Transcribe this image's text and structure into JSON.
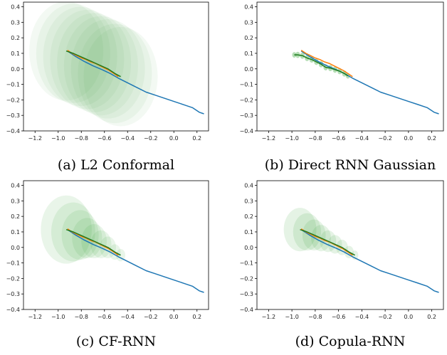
{
  "chart_data": [
    {
      "type": "line",
      "caption": "(a) L2 Conformal",
      "xlim": [
        -1.3,
        0.3
      ],
      "ylim": [
        -0.4,
        0.43
      ],
      "x_ticks": [
        -1.2,
        -1.0,
        -0.8,
        -0.6,
        -0.4,
        -0.2,
        0.0,
        0.2
      ],
      "x_tick_labels": [
        "−1.2",
        "−1.0",
        "−0.8",
        "−0.6",
        "−0.4",
        "−0.2",
        "0.0",
        "0.2"
      ],
      "y_ticks": [
        0.4,
        0.3,
        0.2,
        0.1,
        0.0,
        -0.1,
        -0.2,
        -0.3,
        -0.4
      ],
      "y_tick_labels": [
        "0.4",
        "0.3",
        "0.2",
        "0.1",
        "0.0",
        "−0.1",
        "−0.2",
        "−0.3",
        "−0.4"
      ],
      "series": [
        {
          "role": "full-path",
          "color": "#1f77b4",
          "x": [
            -0.92,
            -0.85,
            -0.78,
            -0.7,
            -0.62,
            -0.55,
            -0.48,
            -0.4,
            -0.32,
            -0.24,
            -0.16,
            -0.08,
            0.0,
            0.08,
            0.16,
            0.22,
            0.26
          ],
          "y": [
            0.115,
            0.08,
            0.05,
            0.02,
            -0.005,
            -0.03,
            -0.06,
            -0.09,
            -0.12,
            -0.15,
            -0.17,
            -0.19,
            -0.21,
            -0.23,
            -0.25,
            -0.28,
            -0.29
          ]
        },
        {
          "role": "ground-truth",
          "color": "#ff7f0e",
          "x": [
            -0.92,
            -0.88,
            -0.84,
            -0.8,
            -0.76,
            -0.72,
            -0.68,
            -0.64,
            -0.6,
            -0.56,
            -0.52,
            -0.48
          ],
          "y": [
            0.12,
            0.1,
            0.085,
            0.07,
            0.06,
            0.045,
            0.035,
            0.02,
            0.005,
            -0.01,
            -0.03,
            -0.05
          ]
        },
        {
          "role": "prediction",
          "color": "#1e7b1e",
          "x": [
            -0.93,
            -0.87,
            -0.81,
            -0.75,
            -0.69,
            -0.63,
            -0.57,
            -0.51,
            -0.46
          ],
          "y": [
            0.115,
            0.1,
            0.08,
            0.06,
            0.04,
            0.02,
            0.0,
            -0.03,
            -0.05
          ]
        }
      ],
      "regions": {
        "color": "#2ca02c",
        "opacity": 0.06,
        "centers": [
          [
            -0.93,
            0.115
          ],
          [
            -0.87,
            0.1
          ],
          [
            -0.81,
            0.08
          ],
          [
            -0.75,
            0.06
          ],
          [
            -0.69,
            0.04
          ],
          [
            -0.63,
            0.02
          ],
          [
            -0.57,
            0.0
          ],
          [
            -0.51,
            -0.03
          ],
          [
            -0.46,
            -0.05
          ]
        ],
        "radii": [
          0.32,
          0.32,
          0.32,
          0.32,
          0.32,
          0.32,
          0.32,
          0.32,
          0.32
        ]
      }
    },
    {
      "type": "line",
      "caption": "(b) Direct RNN Gaussian",
      "xlim": [
        -1.3,
        0.3
      ],
      "ylim": [
        -0.4,
        0.43
      ],
      "x_ticks": [
        -1.2,
        -1.0,
        -0.8,
        -0.6,
        -0.4,
        -0.2,
        0.0,
        0.2
      ],
      "x_tick_labels": [
        "−1.2",
        "−1.0",
        "−0.8",
        "−0.6",
        "−0.4",
        "−0.2",
        "0.0",
        "0.2"
      ],
      "y_ticks": [
        0.4,
        0.3,
        0.2,
        0.1,
        0.0,
        -0.1,
        -0.2,
        -0.3,
        -0.4
      ],
      "y_tick_labels": [
        "0.4",
        "0.3",
        "0.2",
        "0.1",
        "0.0",
        "−0.1",
        "−0.2",
        "−0.3",
        "−0.4"
      ],
      "series": [
        {
          "role": "full-path",
          "color": "#1f77b4",
          "x": [
            -0.92,
            -0.85,
            -0.78,
            -0.7,
            -0.62,
            -0.55,
            -0.48,
            -0.4,
            -0.32,
            -0.24,
            -0.16,
            -0.08,
            0.0,
            0.08,
            0.16,
            0.22,
            0.26
          ],
          "y": [
            0.115,
            0.08,
            0.05,
            0.02,
            -0.005,
            -0.03,
            -0.06,
            -0.09,
            -0.12,
            -0.15,
            -0.17,
            -0.19,
            -0.21,
            -0.23,
            -0.25,
            -0.28,
            -0.29
          ]
        },
        {
          "role": "ground-truth",
          "color": "#ff7f0e",
          "x": [
            -0.92,
            -0.88,
            -0.84,
            -0.8,
            -0.76,
            -0.72,
            -0.68,
            -0.64,
            -0.6,
            -0.56,
            -0.52,
            -0.48
          ],
          "y": [
            0.12,
            0.1,
            0.085,
            0.07,
            0.06,
            0.045,
            0.035,
            0.02,
            0.005,
            -0.01,
            -0.03,
            -0.05
          ]
        },
        {
          "role": "prediction",
          "color": "#1e7b1e",
          "x": [
            -0.98,
            -0.95,
            -0.91,
            -0.87,
            -0.83,
            -0.79,
            -0.75,
            -0.71,
            -0.67,
            -0.63,
            -0.59,
            -0.55,
            -0.52
          ],
          "y": [
            0.09,
            0.09,
            0.085,
            0.07,
            0.06,
            0.045,
            0.03,
            0.01,
            0.005,
            -0.005,
            -0.015,
            -0.03,
            -0.045
          ]
        }
      ],
      "regions": {
        "color": "#2ca02c",
        "opacity": 0.35,
        "centers": [
          [
            -0.98,
            0.09
          ],
          [
            -0.95,
            0.09
          ],
          [
            -0.91,
            0.085
          ],
          [
            -0.87,
            0.07
          ],
          [
            -0.83,
            0.06
          ],
          [
            -0.79,
            0.045
          ],
          [
            -0.75,
            0.03
          ],
          [
            -0.71,
            0.01
          ],
          [
            -0.67,
            0.005
          ],
          [
            -0.63,
            -0.005
          ],
          [
            -0.59,
            -0.015
          ],
          [
            -0.55,
            -0.03
          ],
          [
            -0.52,
            -0.045
          ]
        ],
        "radii": [
          0.018,
          0.02,
          0.02,
          0.02,
          0.02,
          0.02,
          0.02,
          0.02,
          0.02,
          0.02,
          0.02,
          0.02,
          0.018
        ]
      }
    },
    {
      "type": "line",
      "caption": "(c) CF-RNN",
      "xlim": [
        -1.3,
        0.3
      ],
      "ylim": [
        -0.4,
        0.43
      ],
      "x_ticks": [
        -1.2,
        -1.0,
        -0.8,
        -0.6,
        -0.4,
        -0.2,
        0.0,
        0.2
      ],
      "x_tick_labels": [
        "−1.2",
        "−1.0",
        "−0.8",
        "−0.6",
        "−0.4",
        "−0.2",
        "0.0",
        "0.2"
      ],
      "y_ticks": [
        0.4,
        0.3,
        0.2,
        0.1,
        0.0,
        -0.1,
        -0.2,
        -0.3,
        -0.4
      ],
      "y_tick_labels": [
        "0.4",
        "0.3",
        "0.2",
        "0.1",
        "0.0",
        "−0.1",
        "−0.2",
        "−0.3",
        "−0.4"
      ],
      "series": [
        {
          "role": "full-path",
          "color": "#1f77b4",
          "x": [
            -0.92,
            -0.85,
            -0.78,
            -0.7,
            -0.62,
            -0.55,
            -0.48,
            -0.4,
            -0.32,
            -0.24,
            -0.16,
            -0.08,
            0.0,
            0.08,
            0.16,
            0.22,
            0.26
          ],
          "y": [
            0.115,
            0.08,
            0.05,
            0.02,
            -0.005,
            -0.03,
            -0.06,
            -0.09,
            -0.12,
            -0.15,
            -0.17,
            -0.19,
            -0.21,
            -0.23,
            -0.25,
            -0.28,
            -0.29
          ]
        },
        {
          "role": "ground-truth",
          "color": "#ff7f0e",
          "x": [
            -0.92,
            -0.88,
            -0.84,
            -0.8,
            -0.76,
            -0.72,
            -0.68,
            -0.64,
            -0.6,
            -0.56,
            -0.52,
            -0.48
          ],
          "y": [
            0.12,
            0.1,
            0.085,
            0.07,
            0.06,
            0.045,
            0.035,
            0.02,
            0.005,
            -0.01,
            -0.03,
            -0.05
          ]
        },
        {
          "role": "prediction",
          "color": "#1e7b1e",
          "x": [
            -0.93,
            -0.87,
            -0.81,
            -0.75,
            -0.69,
            -0.63,
            -0.57,
            -0.51,
            -0.46
          ],
          "y": [
            0.115,
            0.1,
            0.08,
            0.06,
            0.04,
            0.02,
            0.0,
            -0.03,
            -0.05
          ]
        }
      ],
      "regions": {
        "color": "#2ca02c",
        "opacity": 0.1,
        "centers": [
          [
            -0.93,
            0.115
          ],
          [
            -0.87,
            0.1
          ],
          [
            -0.81,
            0.08
          ],
          [
            -0.75,
            0.06
          ],
          [
            -0.69,
            0.04
          ],
          [
            -0.63,
            0.02
          ],
          [
            -0.57,
            0.0
          ],
          [
            -0.51,
            -0.03
          ],
          [
            -0.46,
            -0.05
          ]
        ],
        "radii": [
          0.22,
          0.19,
          0.16,
          0.13,
          0.11,
          0.09,
          0.07,
          0.05,
          0.04
        ]
      }
    },
    {
      "type": "line",
      "caption": "(d) Copula-RNN",
      "xlim": [
        -1.3,
        0.3
      ],
      "ylim": [
        -0.4,
        0.43
      ],
      "x_ticks": [
        -1.2,
        -1.0,
        -0.8,
        -0.6,
        -0.4,
        -0.2,
        0.0,
        0.2
      ],
      "x_tick_labels": [
        "−1.2",
        "−1.0",
        "−0.8",
        "−0.6",
        "−0.4",
        "−0.2",
        "0.0",
        "0.2"
      ],
      "y_ticks": [
        0.4,
        0.3,
        0.2,
        0.1,
        0.0,
        -0.1,
        -0.2,
        -0.3,
        -0.4
      ],
      "y_tick_labels": [
        "0.4",
        "0.3",
        "0.2",
        "0.1",
        "0.0",
        "−0.1",
        "−0.2",
        "−0.3",
        "−0.4"
      ],
      "series": [
        {
          "role": "full-path",
          "color": "#1f77b4",
          "x": [
            -0.92,
            -0.85,
            -0.78,
            -0.7,
            -0.62,
            -0.55,
            -0.48,
            -0.4,
            -0.32,
            -0.24,
            -0.16,
            -0.08,
            0.0,
            0.08,
            0.16,
            0.22,
            0.26
          ],
          "y": [
            0.115,
            0.08,
            0.05,
            0.02,
            -0.005,
            -0.03,
            -0.06,
            -0.09,
            -0.12,
            -0.15,
            -0.17,
            -0.19,
            -0.21,
            -0.23,
            -0.25,
            -0.28,
            -0.29
          ]
        },
        {
          "role": "ground-truth",
          "color": "#ff7f0e",
          "x": [
            -0.92,
            -0.88,
            -0.84,
            -0.8,
            -0.76,
            -0.72,
            -0.68,
            -0.64,
            -0.6,
            -0.56,
            -0.52,
            -0.48
          ],
          "y": [
            0.12,
            0.1,
            0.085,
            0.07,
            0.06,
            0.045,
            0.035,
            0.02,
            0.005,
            -0.01,
            -0.03,
            -0.05
          ]
        },
        {
          "role": "prediction",
          "color": "#1e7b1e",
          "x": [
            -0.93,
            -0.87,
            -0.81,
            -0.75,
            -0.69,
            -0.63,
            -0.57,
            -0.51,
            -0.46
          ],
          "y": [
            0.115,
            0.1,
            0.08,
            0.06,
            0.04,
            0.02,
            0.0,
            -0.03,
            -0.05
          ]
        }
      ],
      "regions": {
        "color": "#2ca02c",
        "opacity": 0.12,
        "centers": [
          [
            -0.93,
            0.115
          ],
          [
            -0.87,
            0.1
          ],
          [
            -0.81,
            0.08
          ],
          [
            -0.75,
            0.06
          ],
          [
            -0.69,
            0.04
          ],
          [
            -0.63,
            0.02
          ],
          [
            -0.57,
            0.0
          ],
          [
            -0.51,
            -0.03
          ],
          [
            -0.46,
            -0.05
          ]
        ],
        "radii": [
          0.14,
          0.12,
          0.1,
          0.085,
          0.07,
          0.06,
          0.05,
          0.04,
          0.03
        ]
      }
    }
  ]
}
